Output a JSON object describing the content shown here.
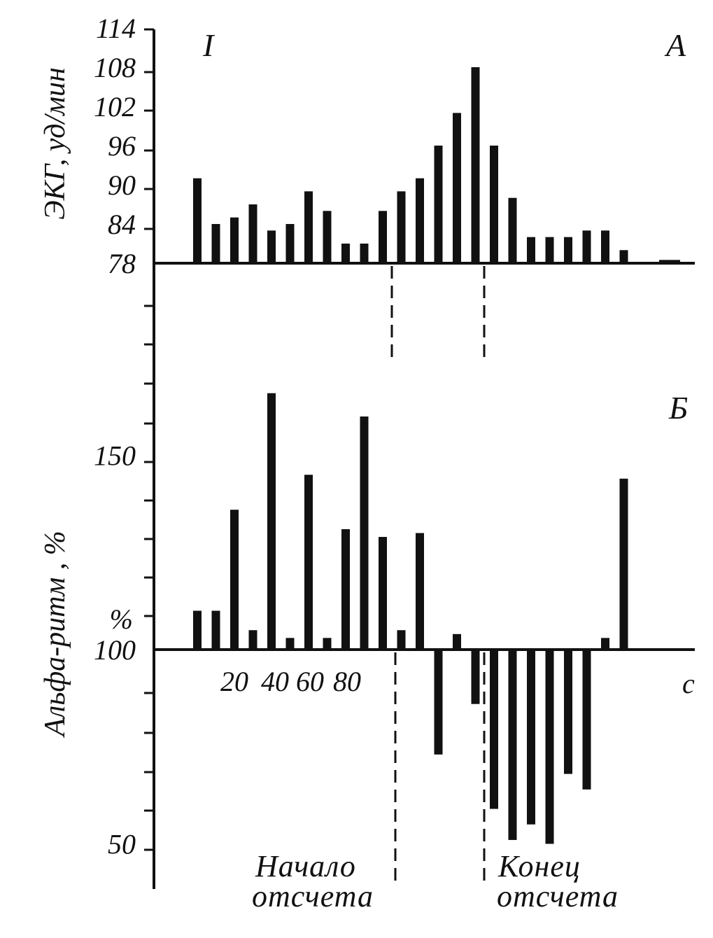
{
  "figure": {
    "label": "I",
    "unit_label": "c",
    "start_note_line1": "Начало",
    "start_note_line2": "отсчета",
    "end_note_line1": "Конец",
    "end_note_line2": "отсчета"
  },
  "chart_data": [
    {
      "type": "bar",
      "panel": "А",
      "ylabel": "ЭКГ, уд/мин",
      "ylim": [
        78,
        114
      ],
      "yticks": [
        78,
        84,
        90,
        96,
        102,
        108,
        114
      ],
      "baseline": 78,
      "values": [
        91,
        84,
        85,
        87,
        83,
        84,
        89,
        86,
        81,
        81,
        86,
        89,
        91,
        96,
        101,
        108,
        96,
        88,
        82,
        82,
        82,
        83,
        83,
        80,
        78.5
      ]
    },
    {
      "type": "bar",
      "panel": "Б",
      "ylabel": "Альфа-ритм , %",
      "ylim": [
        50,
        165
      ],
      "yticks": [
        50,
        100,
        150
      ],
      "percent_label": "%",
      "baseline": 100,
      "xtick_labels": [
        "20",
        "40",
        "60",
        "80"
      ],
      "values": [
        110,
        110,
        136,
        105,
        166,
        103,
        145,
        103,
        131,
        160,
        129,
        105,
        130,
        73,
        104,
        86,
        59,
        51,
        55,
        50,
        68,
        64,
        103,
        144
      ]
    }
  ]
}
